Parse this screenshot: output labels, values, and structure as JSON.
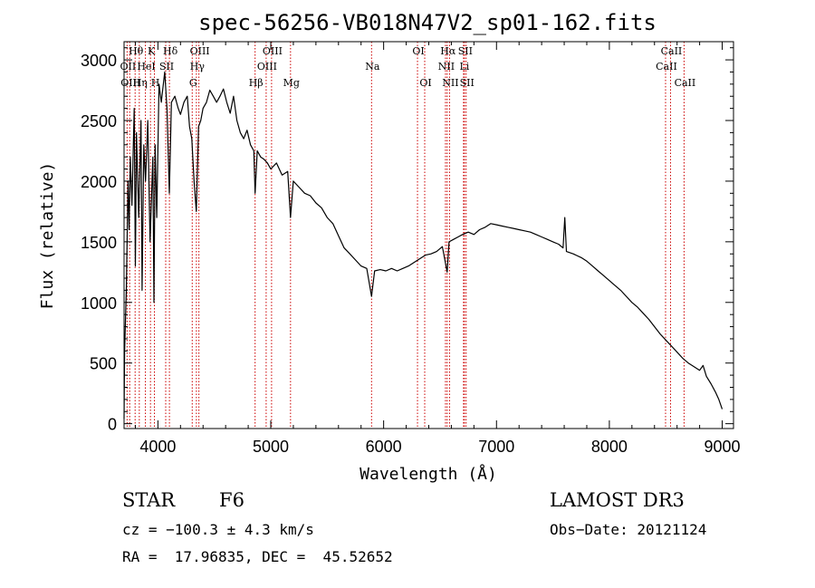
{
  "chart_data": {
    "type": "line",
    "title": "spec-56256-VB018N47V2_sp01-162.fits",
    "xlabel": "Wavelength (Å)",
    "ylabel": "Flux (relative)",
    "xlim": [
      3700,
      9100
    ],
    "ylim": [
      -40,
      3150
    ],
    "xticks": [
      4000,
      5000,
      6000,
      7000,
      8000,
      9000
    ],
    "yticks": [
      0,
      500,
      1000,
      1500,
      2000,
      2500,
      3000
    ],
    "grid": false,
    "spectrum": [
      [
        3700,
        40
      ],
      [
        3705,
        600
      ],
      [
        3720,
        1100
      ],
      [
        3735,
        2000
      ],
      [
        3745,
        1600
      ],
      [
        3755,
        2200
      ],
      [
        3770,
        1800
      ],
      [
        3790,
        2600
      ],
      [
        3800,
        1300
      ],
      [
        3810,
        2400
      ],
      [
        3830,
        1700
      ],
      [
        3850,
        2500
      ],
      [
        3860,
        1100
      ],
      [
        3875,
        2300
      ],
      [
        3890,
        2000
      ],
      [
        3910,
        2500
      ],
      [
        3930,
        1500
      ],
      [
        3955,
        2200
      ],
      [
        3965,
        1000
      ],
      [
        3975,
        2300
      ],
      [
        3990,
        1700
      ],
      [
        4010,
        2800
      ],
      [
        4030,
        2650
      ],
      [
        4060,
        2900
      ],
      [
        4080,
        2600
      ],
      [
        4101,
        1900
      ],
      [
        4120,
        2650
      ],
      [
        4150,
        2700
      ],
      [
        4180,
        2600
      ],
      [
        4200,
        2550
      ],
      [
        4230,
        2650
      ],
      [
        4260,
        2700
      ],
      [
        4280,
        2450
      ],
      [
        4300,
        2350
      ],
      [
        4320,
        2000
      ],
      [
        4340,
        1750
      ],
      [
        4360,
        2450
      ],
      [
        4380,
        2500
      ],
      [
        4400,
        2600
      ],
      [
        4430,
        2650
      ],
      [
        4460,
        2750
      ],
      [
        4490,
        2700
      ],
      [
        4520,
        2650
      ],
      [
        4550,
        2700
      ],
      [
        4580,
        2760
      ],
      [
        4610,
        2650
      ],
      [
        4640,
        2560
      ],
      [
        4670,
        2700
      ],
      [
        4700,
        2500
      ],
      [
        4730,
        2400
      ],
      [
        4760,
        2350
      ],
      [
        4790,
        2420
      ],
      [
        4820,
        2300
      ],
      [
        4850,
        2250
      ],
      [
        4861,
        1900
      ],
      [
        4880,
        2250
      ],
      [
        4910,
        2200
      ],
      [
        4940,
        2180
      ],
      [
        4970,
        2150
      ],
      [
        5000,
        2100
      ],
      [
        5050,
        2150
      ],
      [
        5100,
        2050
      ],
      [
        5150,
        2080
      ],
      [
        5175,
        1700
      ],
      [
        5200,
        2000
      ],
      [
        5250,
        1950
      ],
      [
        5300,
        1900
      ],
      [
        5350,
        1880
      ],
      [
        5400,
        1820
      ],
      [
        5450,
        1780
      ],
      [
        5500,
        1700
      ],
      [
        5550,
        1650
      ],
      [
        5600,
        1550
      ],
      [
        5650,
        1450
      ],
      [
        5700,
        1400
      ],
      [
        5750,
        1350
      ],
      [
        5800,
        1300
      ],
      [
        5850,
        1280
      ],
      [
        5893,
        1050
      ],
      [
        5920,
        1260
      ],
      [
        5970,
        1270
      ],
      [
        6020,
        1260
      ],
      [
        6070,
        1280
      ],
      [
        6120,
        1260
      ],
      [
        6170,
        1280
      ],
      [
        6220,
        1300
      ],
      [
        6270,
        1330
      ],
      [
        6320,
        1360
      ],
      [
        6370,
        1390
      ],
      [
        6420,
        1400
      ],
      [
        6470,
        1420
      ],
      [
        6520,
        1460
      ],
      [
        6563,
        1250
      ],
      [
        6580,
        1500
      ],
      [
        6620,
        1520
      ],
      [
        6660,
        1540
      ],
      [
        6700,
        1560
      ],
      [
        6750,
        1580
      ],
      [
        6800,
        1560
      ],
      [
        6850,
        1600
      ],
      [
        6900,
        1620
      ],
      [
        6950,
        1650
      ],
      [
        7000,
        1640
      ],
      [
        7050,
        1630
      ],
      [
        7100,
        1620
      ],
      [
        7150,
        1610
      ],
      [
        7200,
        1600
      ],
      [
        7250,
        1590
      ],
      [
        7300,
        1580
      ],
      [
        7350,
        1560
      ],
      [
        7400,
        1540
      ],
      [
        7450,
        1520
      ],
      [
        7500,
        1500
      ],
      [
        7550,
        1480
      ],
      [
        7590,
        1450
      ],
      [
        7605,
        1700
      ],
      [
        7620,
        1420
      ],
      [
        7680,
        1400
      ],
      [
        7750,
        1370
      ],
      [
        7800,
        1340
      ],
      [
        7850,
        1300
      ],
      [
        7900,
        1260
      ],
      [
        7950,
        1220
      ],
      [
        8000,
        1180
      ],
      [
        8050,
        1140
      ],
      [
        8100,
        1100
      ],
      [
        8150,
        1050
      ],
      [
        8200,
        1000
      ],
      [
        8250,
        960
      ],
      [
        8300,
        910
      ],
      [
        8350,
        860
      ],
      [
        8400,
        800
      ],
      [
        8450,
        740
      ],
      [
        8500,
        690
      ],
      [
        8550,
        640
      ],
      [
        8600,
        590
      ],
      [
        8650,
        540
      ],
      [
        8700,
        500
      ],
      [
        8750,
        470
      ],
      [
        8800,
        440
      ],
      [
        8830,
        480
      ],
      [
        8860,
        390
      ],
      [
        8900,
        330
      ],
      [
        8940,
        260
      ],
      [
        8970,
        200
      ],
      [
        9000,
        120
      ]
    ],
    "lines": [
      {
        "label": "Hθ",
        "wavelength": 3798,
        "row": 0
      },
      {
        "label": "OII",
        "wavelength": 3727,
        "row": 1
      },
      {
        "label": "OIII",
        "wavelength": 3750,
        "row": 2
      },
      {
        "label": "K",
        "wavelength": 3934,
        "row": 0
      },
      {
        "label": "HeI",
        "wavelength": 3889,
        "row": 1
      },
      {
        "label": "Hη",
        "wavelength": 3835,
        "row": 2
      },
      {
        "label": "Hδ",
        "wavelength": 4102,
        "row": 0
      },
      {
        "label": "SII",
        "wavelength": 4069,
        "row": 1
      },
      {
        "label": "H",
        "wavelength": 3969,
        "row": 2
      },
      {
        "label": "OIII",
        "wavelength": 4363,
        "row": 0
      },
      {
        "label": "Hγ",
        "wavelength": 4341,
        "row": 1
      },
      {
        "label": "G",
        "wavelength": 4304,
        "row": 2
      },
      {
        "label": "OIII",
        "wavelength": 5007,
        "row": 0
      },
      {
        "label": "OIII",
        "wavelength": 4959,
        "row": 1
      },
      {
        "label": "Hβ",
        "wavelength": 4861,
        "row": 2
      },
      {
        "label": "Mg",
        "wavelength": 5175,
        "row": 2
      },
      {
        "label": "Na",
        "wavelength": 5893,
        "row": 1
      },
      {
        "label": "OI",
        "wavelength": 6300,
        "row": 0
      },
      {
        "label": "OI",
        "wavelength": 6364,
        "row": 2
      },
      {
        "label": "Hα",
        "wavelength": 6563,
        "row": 0
      },
      {
        "label": "SII",
        "wavelength": 6716,
        "row": 0
      },
      {
        "label": "NII",
        "wavelength": 6548,
        "row": 1
      },
      {
        "label": "Li",
        "wavelength": 6708,
        "row": 1
      },
      {
        "label": "NII",
        "wavelength": 6584,
        "row": 2
      },
      {
        "label": "SII",
        "wavelength": 6731,
        "row": 2
      },
      {
        "label": "CaII",
        "wavelength": 8542,
        "row": 0
      },
      {
        "label": "CaII",
        "wavelength": 8498,
        "row": 1
      },
      {
        "label": "CaII",
        "wavelength": 8662,
        "row": 2
      }
    ]
  },
  "info": {
    "object_class": "STAR",
    "subclass": "F6",
    "survey": "LAMOST DR3",
    "redshift": "cz = −100.3 ± 4.3 km/s",
    "obs_date": "Obs−Date: 20121124",
    "coords": "RA =  17.96835, DEC =  45.52652"
  },
  "colors": {
    "spectrum": "#000000",
    "line_marker": "#cc0000",
    "axes": "#000000"
  }
}
